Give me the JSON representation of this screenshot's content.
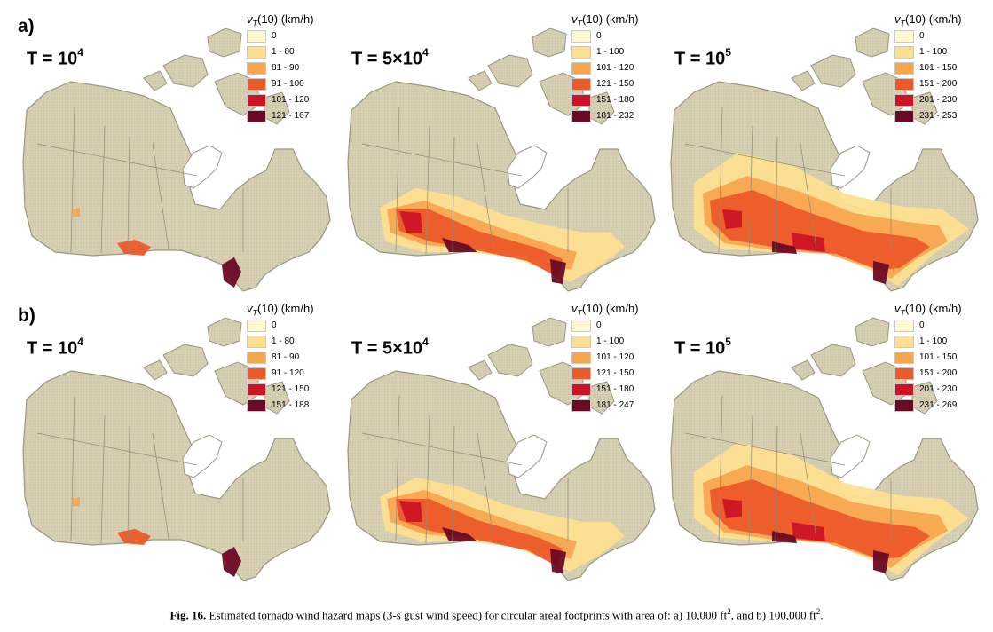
{
  "figure": {
    "row_a_label": "a)",
    "row_b_label": "b)",
    "legend_title_prefix": "v",
    "legend_title_sub": "T",
    "legend_title_suffix": "(10) (km/h)",
    "caption_label": "Fig. 16.",
    "caption_text_1": " Estimated tornado wind hazard maps (3-s gust wind speed) for circular areal footprints with area of: a) 10,000 ft",
    "caption_sup_1": "2",
    "caption_text_2": ", and b) 100,000 ft",
    "caption_sup_2": "2",
    "caption_text_3": "."
  },
  "colors": {
    "land": "#d7d0b4",
    "land_stroke": "#9b967f",
    "scale": [
      "#fff7cf",
      "#fddf90",
      "#f7a650",
      "#ec5a2a",
      "#cc1426",
      "#6b0a24"
    ]
  },
  "panels": [
    {
      "row": "a",
      "t_prefix": "T = 10",
      "t_sup": "4",
      "legend": [
        "0",
        "1 - 80",
        "81 - 90",
        "91 - 100",
        "101 - 120",
        "121 - 167"
      ],
      "hazard_level": 1
    },
    {
      "row": "a",
      "t_prefix": "T = 5×10",
      "t_sup": "4",
      "legend": [
        "0",
        "1 - 100",
        "101 - 120",
        "121 - 150",
        "151 - 180",
        "181 - 232"
      ],
      "hazard_level": 2
    },
    {
      "row": "a",
      "t_prefix": "T = 10",
      "t_sup": "5",
      "legend": [
        "0",
        "1 - 100",
        "101 - 150",
        "151 - 200",
        "201 - 230",
        "231 - 253"
      ],
      "hazard_level": 3
    },
    {
      "row": "b",
      "t_prefix": "T = 10",
      "t_sup": "4",
      "legend": [
        "0",
        "1 - 80",
        "81 - 90",
        "91 - 120",
        "121 - 150",
        "151 - 188"
      ],
      "hazard_level": 1
    },
    {
      "row": "b",
      "t_prefix": "T = 5×10",
      "t_sup": "4",
      "legend": [
        "0",
        "1 - 100",
        "101 - 120",
        "121 - 150",
        "151 - 180",
        "181 - 247"
      ],
      "hazard_level": 2
    },
    {
      "row": "b",
      "t_prefix": "T = 10",
      "t_sup": "5",
      "legend": [
        "0",
        "1 - 100",
        "101 - 150",
        "151 - 200",
        "201 - 230",
        "231 - 269"
      ],
      "hazard_level": 3
    }
  ]
}
